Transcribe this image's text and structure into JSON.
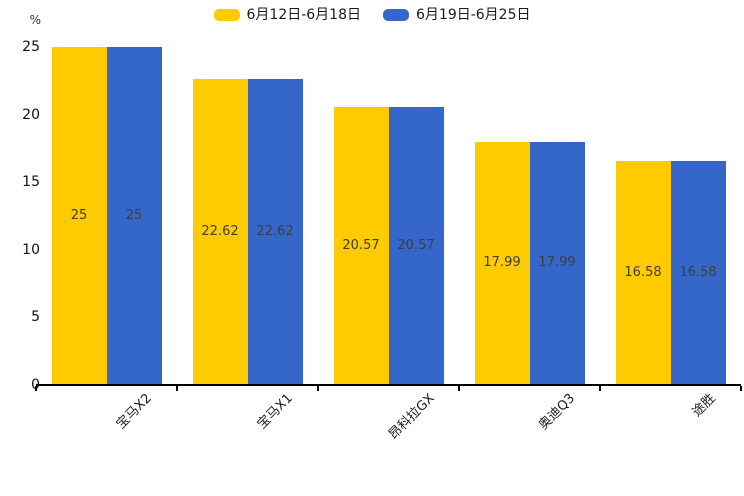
{
  "chart_data": {
    "type": "bar",
    "title": "",
    "categories": [
      "宝马X2",
      "宝马X1",
      "昂科拉GX",
      "奥迪Q3",
      "途胜"
    ],
    "series": [
      {
        "name": "6月12日-6月18日",
        "color": "#FECB00",
        "values": [
          25,
          22.62,
          20.57,
          17.99,
          16.58
        ]
      },
      {
        "name": "6月19日-6月25日",
        "color": "#3567CB",
        "values": [
          25,
          22.62,
          20.57,
          17.99,
          16.58
        ]
      }
    ],
    "value_labels": [
      "25",
      "22.62",
      "20.57",
      "17.99",
      "16.58"
    ],
    "xlabel": "",
    "ylabel": "%",
    "ylim": [
      0,
      25
    ],
    "yticks": [
      0,
      5,
      10,
      15,
      20,
      25
    ],
    "grid": false,
    "legend_position": "top",
    "bar_label_color": "#3d3d3d",
    "axis_color": "#000000",
    "background_color": "#ffffff"
  }
}
